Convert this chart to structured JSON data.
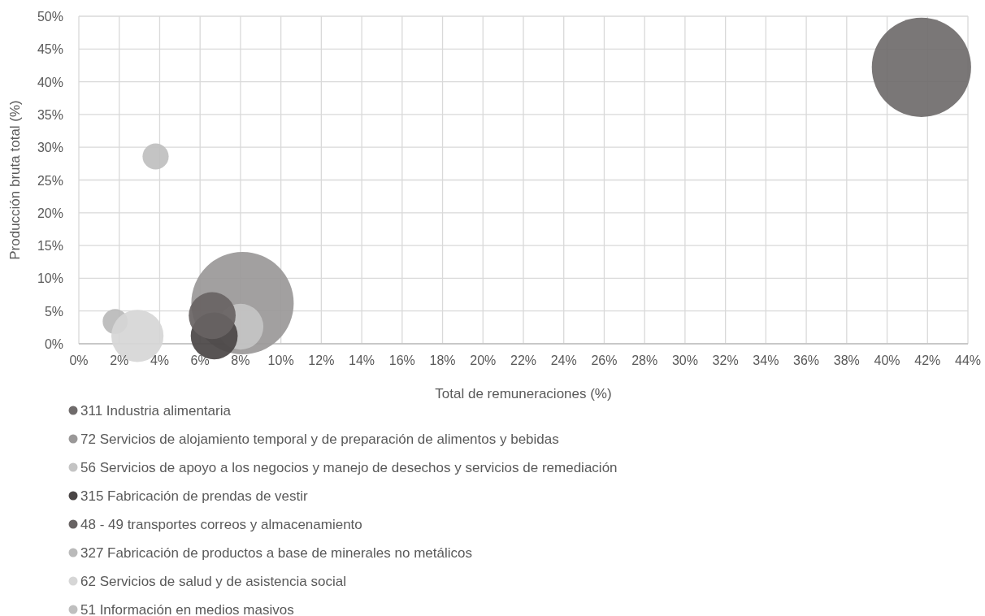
{
  "chart_data": {
    "type": "bubble",
    "xlabel": "Total de remuneraciones (%)",
    "ylabel": "Producción bruta total (%)",
    "xlim": [
      0,
      44
    ],
    "xticks": [
      {
        "value": 0,
        "label": "0%"
      },
      {
        "value": 2,
        "label": "2%"
      },
      {
        "value": 4,
        "label": "4%"
      },
      {
        "value": 6,
        "label": "6%"
      },
      {
        "value": 8,
        "label": "8%"
      },
      {
        "value": 10,
        "label": "10%"
      },
      {
        "value": 12,
        "label": "12%"
      },
      {
        "value": 14,
        "label": "14%"
      },
      {
        "value": 16,
        "label": "16%"
      },
      {
        "value": 18,
        "label": "18%"
      },
      {
        "value": 20,
        "label": "20%"
      },
      {
        "value": 22,
        "label": "22%"
      },
      {
        "value": 24,
        "label": "24%"
      },
      {
        "value": 26,
        "label": "26%"
      },
      {
        "value": 28,
        "label": "28%"
      },
      {
        "value": 30,
        "label": "30%"
      },
      {
        "value": 32,
        "label": "32%"
      },
      {
        "value": 34,
        "label": "34%"
      },
      {
        "value": 36,
        "label": "36%"
      },
      {
        "value": 38,
        "label": "38%"
      },
      {
        "value": 40,
        "label": "40%"
      },
      {
        "value": 42,
        "label": "42%"
      },
      {
        "value": 44,
        "label": "44%"
      }
    ],
    "ylim": [
      0,
      50
    ],
    "yticks": [
      {
        "value": 0,
        "label": "0%"
      },
      {
        "value": 5,
        "label": "5%"
      },
      {
        "value": 10,
        "label": "10%"
      },
      {
        "value": 15,
        "label": "15%"
      },
      {
        "value": 20,
        "label": "20%"
      },
      {
        "value": 25,
        "label": "25%"
      },
      {
        "value": 30,
        "label": "30%"
      },
      {
        "value": 35,
        "label": "35%"
      },
      {
        "value": 40,
        "label": "40%"
      },
      {
        "value": 45,
        "label": "45%"
      },
      {
        "value": 50,
        "label": "50%"
      }
    ],
    "grid": true,
    "legend": "bottom",
    "series": [
      {
        "name": "311 Industria alimentaria",
        "color": "#6f6b6b",
        "x": [
          41.7
        ],
        "values": [
          42.2
        ],
        "sizes": [
          0.94
        ]
      },
      {
        "name": "72 Servicios de alojamiento temporal y de preparación de alimentos y bebidas",
        "color": "#9a9898",
        "x": [
          8.1
        ],
        "values": [
          6.2
        ],
        "sizes": [
          1
        ]
      },
      {
        "name": "56 Servicios de apoyo a los negocios y manejo de desechos y servicios de remediación",
        "color": "#c4c4c4",
        "x": [
          8
        ],
        "values": [
          2.6
        ],
        "sizes": [
          0.2
        ]
      },
      {
        "name": "315 Fabricación de prendas de vestir",
        "color": "#4a4545",
        "x": [
          6.7
        ],
        "values": [
          1.2
        ],
        "sizes": [
          0.21
        ]
      },
      {
        "name": "48 - 49 transportes correos y almacenamiento",
        "color": "#686363",
        "x": [
          6.6
        ],
        "values": [
          4.3
        ],
        "sizes": [
          0.21
        ]
      },
      {
        "name": "327 Fabricación de productos a base de minerales no metálicos",
        "color": "#bababa",
        "x": [
          1.8
        ],
        "values": [
          3.4
        ],
        "sizes": [
          0.06
        ]
      },
      {
        "name": "62 Servicios de salud y de asistencia social",
        "color": "#d6d6d6",
        "x": [
          2.9
        ],
        "values": [
          1.2
        ],
        "sizes": [
          0.26
        ]
      },
      {
        "name": "51 Información en medios masivos",
        "color": "#bfbfbf",
        "x": [
          3.8
        ],
        "values": [
          28.6
        ],
        "sizes": [
          0.065
        ]
      }
    ]
  }
}
